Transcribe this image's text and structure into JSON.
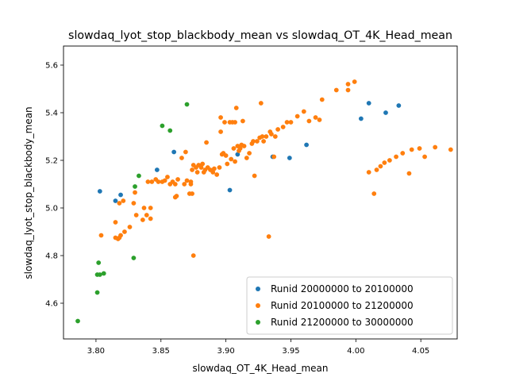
{
  "chart_data": {
    "type": "scatter",
    "title": "slowdaq_lyot_stop_blackbody_mean vs slowdaq_OT_4K_Head_mean",
    "xlabel": "slowdaq_OT_4K_Head_mean",
    "ylabel": "slowdaq_lyot_stop_blackbody_mean",
    "xlim": [
      3.775,
      4.078
    ],
    "ylim": [
      4.45,
      5.68
    ],
    "xticks": [
      3.8,
      3.85,
      3.9,
      3.95,
      4.0,
      4.05
    ],
    "xtick_labels": [
      "3.80",
      "3.85",
      "3.90",
      "3.95",
      "4.00",
      "4.05"
    ],
    "yticks": [
      4.6,
      4.8,
      5.0,
      5.2,
      5.4,
      5.6
    ],
    "ytick_labels": [
      "4.6",
      "4.8",
      "5.0",
      "5.2",
      "5.4",
      "5.6"
    ],
    "grid": false,
    "legend_position": "lower-right",
    "series": [
      {
        "name": "Runid 20000000 to 20100000",
        "color": "#1f77b4",
        "points": [
          [
            3.803,
            5.07
          ],
          [
            3.815,
            5.03
          ],
          [
            3.819,
            5.055
          ],
          [
            3.847,
            5.16
          ],
          [
            3.86,
            5.235
          ],
          [
            3.903,
            5.075
          ],
          [
            3.909,
            5.225
          ],
          [
            3.936,
            5.215
          ],
          [
            3.949,
            5.21
          ],
          [
            3.962,
            5.265
          ],
          [
            4.004,
            5.375
          ],
          [
            4.01,
            5.44
          ],
          [
            4.023,
            5.4
          ],
          [
            4.033,
            5.43
          ]
        ]
      },
      {
        "name": "Runid 20100000 to 21200000",
        "color": "#ff7f0e",
        "points": [
          [
            3.804,
            4.885
          ],
          [
            3.815,
            4.875
          ],
          [
            3.815,
            4.94
          ],
          [
            3.817,
            4.87
          ],
          [
            3.818,
            4.875
          ],
          [
            3.819,
            4.885
          ],
          [
            3.818,
            5.02
          ],
          [
            3.821,
            5.03
          ],
          [
            3.822,
            4.9
          ],
          [
            3.826,
            4.92
          ],
          [
            3.829,
            5.02
          ],
          [
            3.83,
            5.065
          ],
          [
            3.831,
            4.97
          ],
          [
            3.836,
            4.95
          ],
          [
            3.837,
            5.0
          ],
          [
            3.839,
            4.97
          ],
          [
            3.84,
            5.11
          ],
          [
            3.842,
            5.0
          ],
          [
            3.842,
            4.955
          ],
          [
            3.843,
            5.11
          ],
          [
            3.846,
            5.12
          ],
          [
            3.848,
            5.11
          ],
          [
            3.851,
            5.11
          ],
          [
            3.853,
            5.115
          ],
          [
            3.855,
            5.13
          ],
          [
            3.857,
            5.1
          ],
          [
            3.859,
            5.11
          ],
          [
            3.861,
            5.1
          ],
          [
            3.861,
            5.045
          ],
          [
            3.862,
            5.05
          ],
          [
            3.863,
            5.12
          ],
          [
            3.866,
            5.21
          ],
          [
            3.869,
            5.235
          ],
          [
            3.868,
            5.1
          ],
          [
            3.87,
            5.115
          ],
          [
            3.872,
            5.06
          ],
          [
            3.873,
            5.1
          ],
          [
            3.873,
            5.11
          ],
          [
            3.874,
            5.16
          ],
          [
            3.874,
            5.06
          ],
          [
            3.875,
            5.18
          ],
          [
            3.875,
            4.8
          ],
          [
            3.877,
            5.17
          ],
          [
            3.878,
            5.15
          ],
          [
            3.879,
            5.18
          ],
          [
            3.881,
            5.17
          ],
          [
            3.882,
            5.185
          ],
          [
            3.883,
            5.15
          ],
          [
            3.884,
            5.16
          ],
          [
            3.886,
            5.17
          ],
          [
            3.885,
            5.275
          ],
          [
            3.888,
            5.16
          ],
          [
            3.89,
            5.15
          ],
          [
            3.891,
            5.165
          ],
          [
            3.893,
            5.14
          ],
          [
            3.895,
            5.17
          ],
          [
            3.896,
            5.38
          ],
          [
            3.896,
            5.32
          ],
          [
            3.897,
            5.225
          ],
          [
            3.898,
            5.23
          ],
          [
            3.899,
            5.36
          ],
          [
            3.9,
            5.22
          ],
          [
            3.901,
            5.185
          ],
          [
            3.903,
            5.36
          ],
          [
            3.904,
            5.205
          ],
          [
            3.905,
            5.36
          ],
          [
            3.906,
            5.25
          ],
          [
            3.907,
            5.36
          ],
          [
            3.907,
            5.195
          ],
          [
            3.908,
            5.42
          ],
          [
            3.909,
            5.26
          ],
          [
            3.91,
            5.24
          ],
          [
            3.911,
            5.25
          ],
          [
            3.912,
            5.265
          ],
          [
            3.913,
            5.365
          ],
          [
            3.914,
            5.26
          ],
          [
            3.916,
            5.21
          ],
          [
            3.918,
            5.23
          ],
          [
            3.92,
            5.27
          ],
          [
            3.921,
            5.28
          ],
          [
            3.922,
            5.135
          ],
          [
            3.924,
            5.28
          ],
          [
            3.926,
            5.295
          ],
          [
            3.927,
            5.44
          ],
          [
            3.928,
            5.3
          ],
          [
            3.929,
            5.28
          ],
          [
            3.931,
            5.3
          ],
          [
            3.933,
            4.88
          ],
          [
            3.934,
            5.32
          ],
          [
            3.935,
            5.31
          ],
          [
            3.937,
            5.215
          ],
          [
            3.938,
            5.3
          ],
          [
            3.94,
            5.33
          ],
          [
            3.944,
            5.34
          ],
          [
            3.947,
            5.36
          ],
          [
            3.95,
            5.36
          ],
          [
            3.955,
            5.385
          ],
          [
            3.96,
            5.405
          ],
          [
            3.964,
            5.365
          ],
          [
            3.969,
            5.38
          ],
          [
            3.972,
            5.37
          ],
          [
            3.974,
            5.455
          ],
          [
            3.985,
            5.495
          ],
          [
            3.994,
            5.495
          ],
          [
            3.994,
            5.52
          ],
          [
            3.999,
            5.53
          ],
          [
            4.01,
            5.15
          ],
          [
            4.014,
            5.06
          ],
          [
            4.016,
            5.16
          ],
          [
            4.019,
            5.175
          ],
          [
            4.022,
            5.19
          ],
          [
            4.026,
            5.2
          ],
          [
            4.031,
            5.215
          ],
          [
            4.036,
            5.23
          ],
          [
            4.041,
            5.145
          ],
          [
            4.043,
            5.245
          ],
          [
            4.049,
            5.25
          ],
          [
            4.053,
            5.215
          ],
          [
            4.061,
            5.255
          ],
          [
            4.073,
            5.245
          ]
        ]
      },
      {
        "name": "Runid 21200000 to 30000000",
        "color": "#2ca02c",
        "points": [
          [
            3.786,
            4.525
          ],
          [
            3.801,
            4.72
          ],
          [
            3.801,
            4.645
          ],
          [
            3.802,
            4.77
          ],
          [
            3.803,
            4.72
          ],
          [
            3.806,
            4.725
          ],
          [
            3.829,
            4.79
          ],
          [
            3.83,
            5.09
          ],
          [
            3.833,
            5.135
          ],
          [
            3.851,
            5.345
          ],
          [
            3.857,
            5.325
          ],
          [
            3.87,
            5.435
          ]
        ]
      }
    ]
  }
}
